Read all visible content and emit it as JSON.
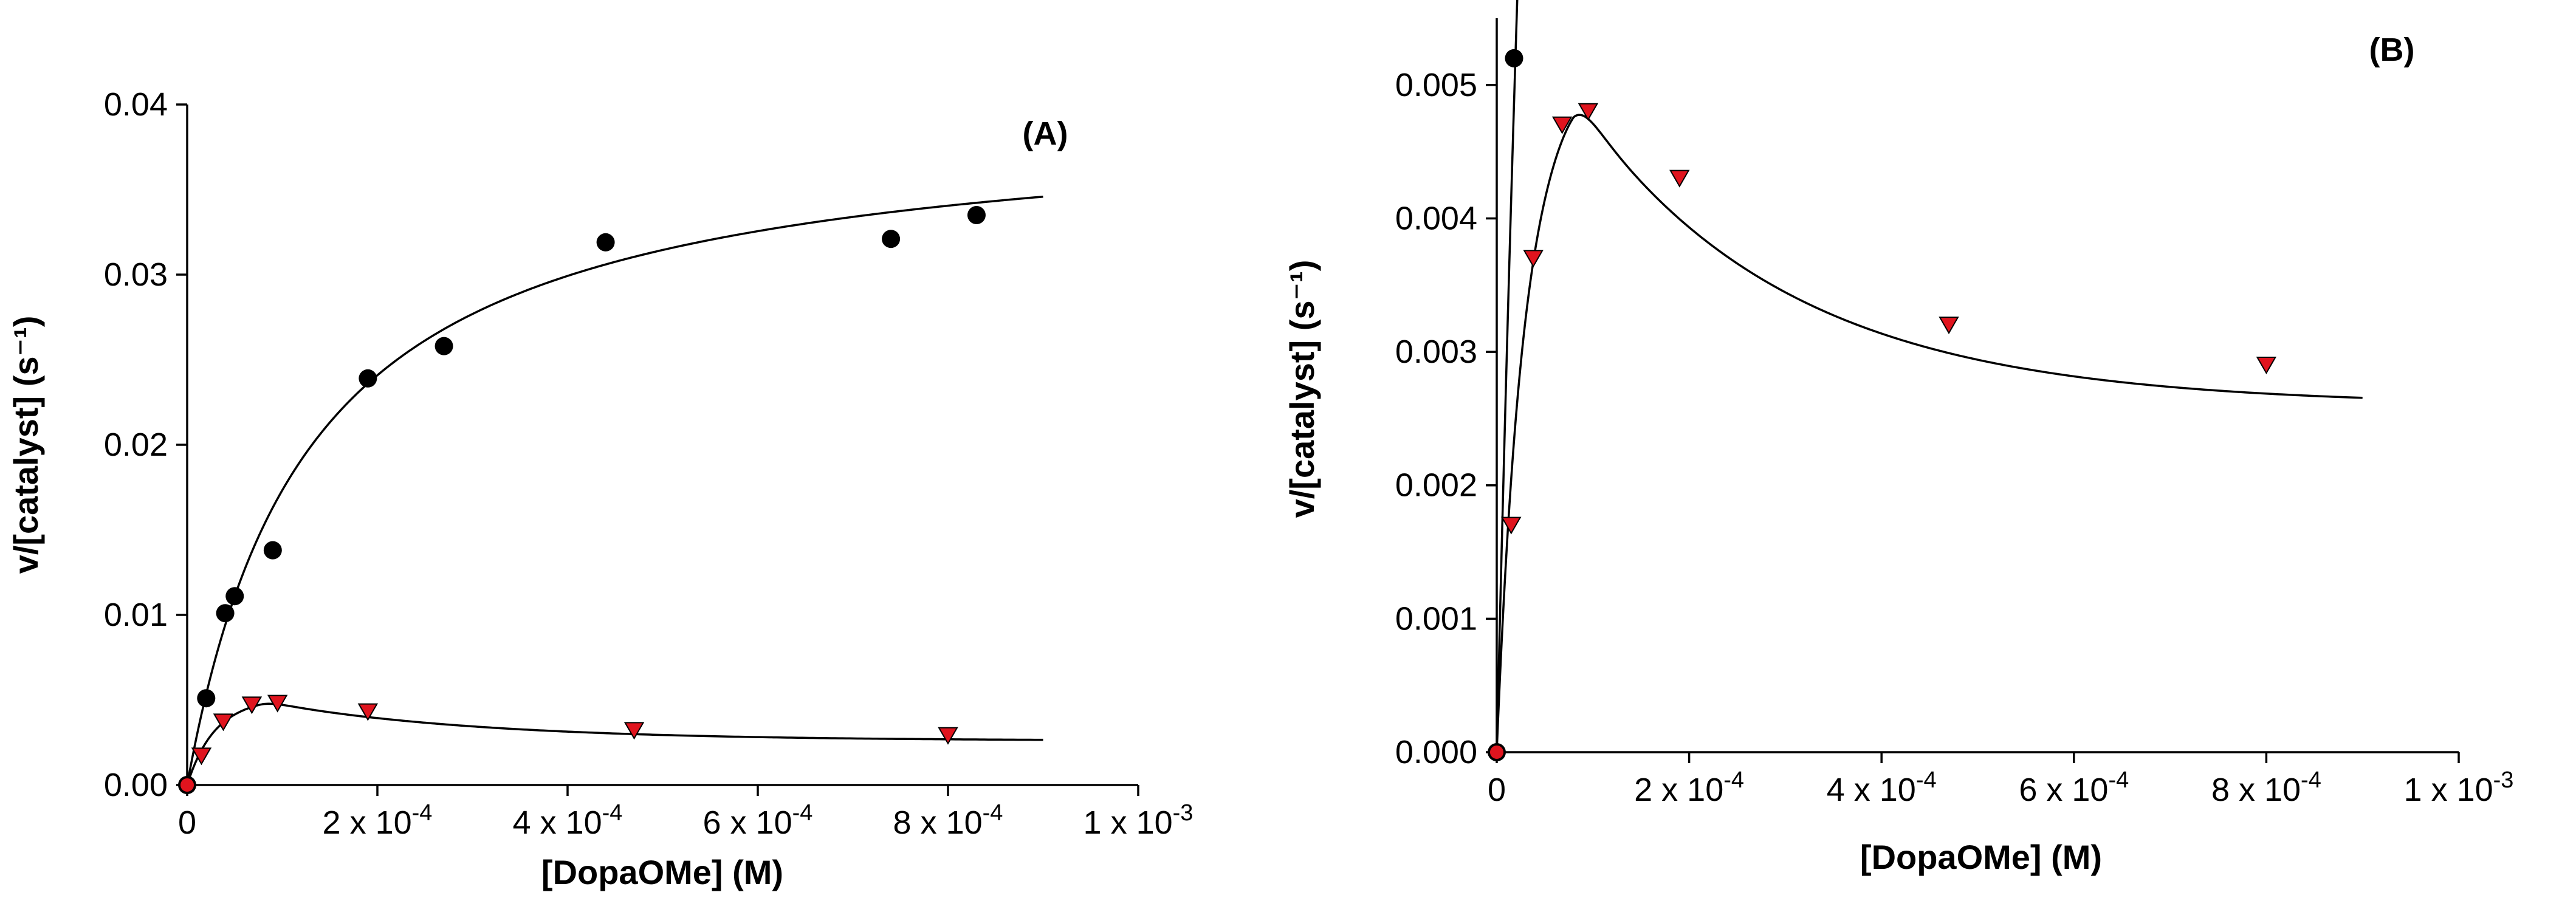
{
  "chart_data": [
    {
      "type": "scatter",
      "panel_label": "(A)",
      "xlabel": "[DopaOMe] (M)",
      "ylabel": "v/[catalyst] (s⁻¹)",
      "xlim": [
        0,
        0.001
      ],
      "ylim": [
        0,
        0.04
      ],
      "y_ticks": [
        0,
        0.01,
        0.02,
        0.03,
        0.04
      ],
      "y_tick_labels": [
        "0.00",
        "0.01",
        "0.02",
        "0.03",
        "0.04"
      ],
      "x_ticks": [
        0,
        0.0002,
        0.0004,
        0.0006,
        0.0008,
        0.001
      ],
      "x_tick_labels": [
        {
          "mant": "0",
          "exp": ""
        },
        {
          "mant": "2 x 10",
          "exp": "-4"
        },
        {
          "mant": "4 x 10",
          "exp": "-4"
        },
        {
          "mant": "6 x 10",
          "exp": "-4"
        },
        {
          "mant": "8 x 10",
          "exp": "-4"
        },
        {
          "mant": "1 x 10",
          "exp": "-3"
        }
      ],
      "series": [
        {
          "name": "black circles",
          "marker": "circle",
          "x": [
            0,
            2e-05,
            4e-05,
            5e-05,
            9e-05,
            0.00019,
            0.00027,
            0.00044,
            0.00074,
            0.00083
          ],
          "y": [
            0,
            0.0051,
            0.0101,
            0.0111,
            0.0138,
            0.0239,
            0.0258,
            0.0319,
            0.0321,
            0.0335
          ],
          "fit": {
            "model": "michaelis-menten",
            "vmax": 0.0395,
            "km": 0.000128,
            "x_range": [
              0,
              0.0009
            ]
          }
        },
        {
          "name": "red triangles",
          "marker": "triangle-down",
          "x": [
            0,
            1.5e-05,
            3.8e-05,
            6.8e-05,
            9.5e-05,
            0.00019,
            0.00047,
            0.0008
          ],
          "y": [
            0,
            0.0017,
            0.0037,
            0.0047,
            0.0048,
            0.0043,
            0.0032,
            0.0029
          ],
          "fit": {
            "model": "substrate-inhibition-peak",
            "x_range": [
              0,
              0.0009
            ]
          }
        }
      ]
    },
    {
      "type": "scatter",
      "panel_label": "(B)",
      "xlabel": "[DopaOMe] (M)",
      "ylabel": "v/[catalyst] (s⁻¹)",
      "xlim": [
        0,
        0.001
      ],
      "ylim": [
        0,
        0.0055
      ],
      "y_ticks": [
        0,
        0.001,
        0.002,
        0.003,
        0.004,
        0.005
      ],
      "y_tick_labels": [
        "0.000",
        "0.001",
        "0.002",
        "0.003",
        "0.004",
        "0.005"
      ],
      "x_ticks": [
        0,
        0.0002,
        0.0004,
        0.0006,
        0.0008,
        0.001
      ],
      "x_tick_labels": [
        {
          "mant": "0",
          "exp": ""
        },
        {
          "mant": "2 x 10",
          "exp": "-4"
        },
        {
          "mant": "4 x 10",
          "exp": "-4"
        },
        {
          "mant": "6 x 10",
          "exp": "-4"
        },
        {
          "mant": "8 x 10",
          "exp": "-4"
        },
        {
          "mant": "1 x 10",
          "exp": "-3"
        }
      ],
      "series": [
        {
          "name": "black circles",
          "marker": "circle",
          "x": [
            0,
            1.8e-05
          ],
          "y": [
            0,
            0.0052
          ],
          "fit": {
            "model": "michaelis-menten",
            "vmax": 0.0395,
            "km": 0.000128,
            "x_range": [
              0,
              4e-05
            ]
          }
        },
        {
          "name": "red triangles",
          "marker": "triangle-down",
          "x": [
            0,
            1.5e-05,
            3.8e-05,
            6.8e-05,
            9.5e-05,
            0.00019,
            0.00047,
            0.0008
          ],
          "y": [
            0,
            0.0017,
            0.0037,
            0.0047,
            0.0048,
            0.0043,
            0.0032,
            0.0029
          ],
          "fit": {
            "model": "substrate-inhibition-peak",
            "x_range": [
              0,
              0.0009
            ]
          }
        }
      ]
    }
  ]
}
